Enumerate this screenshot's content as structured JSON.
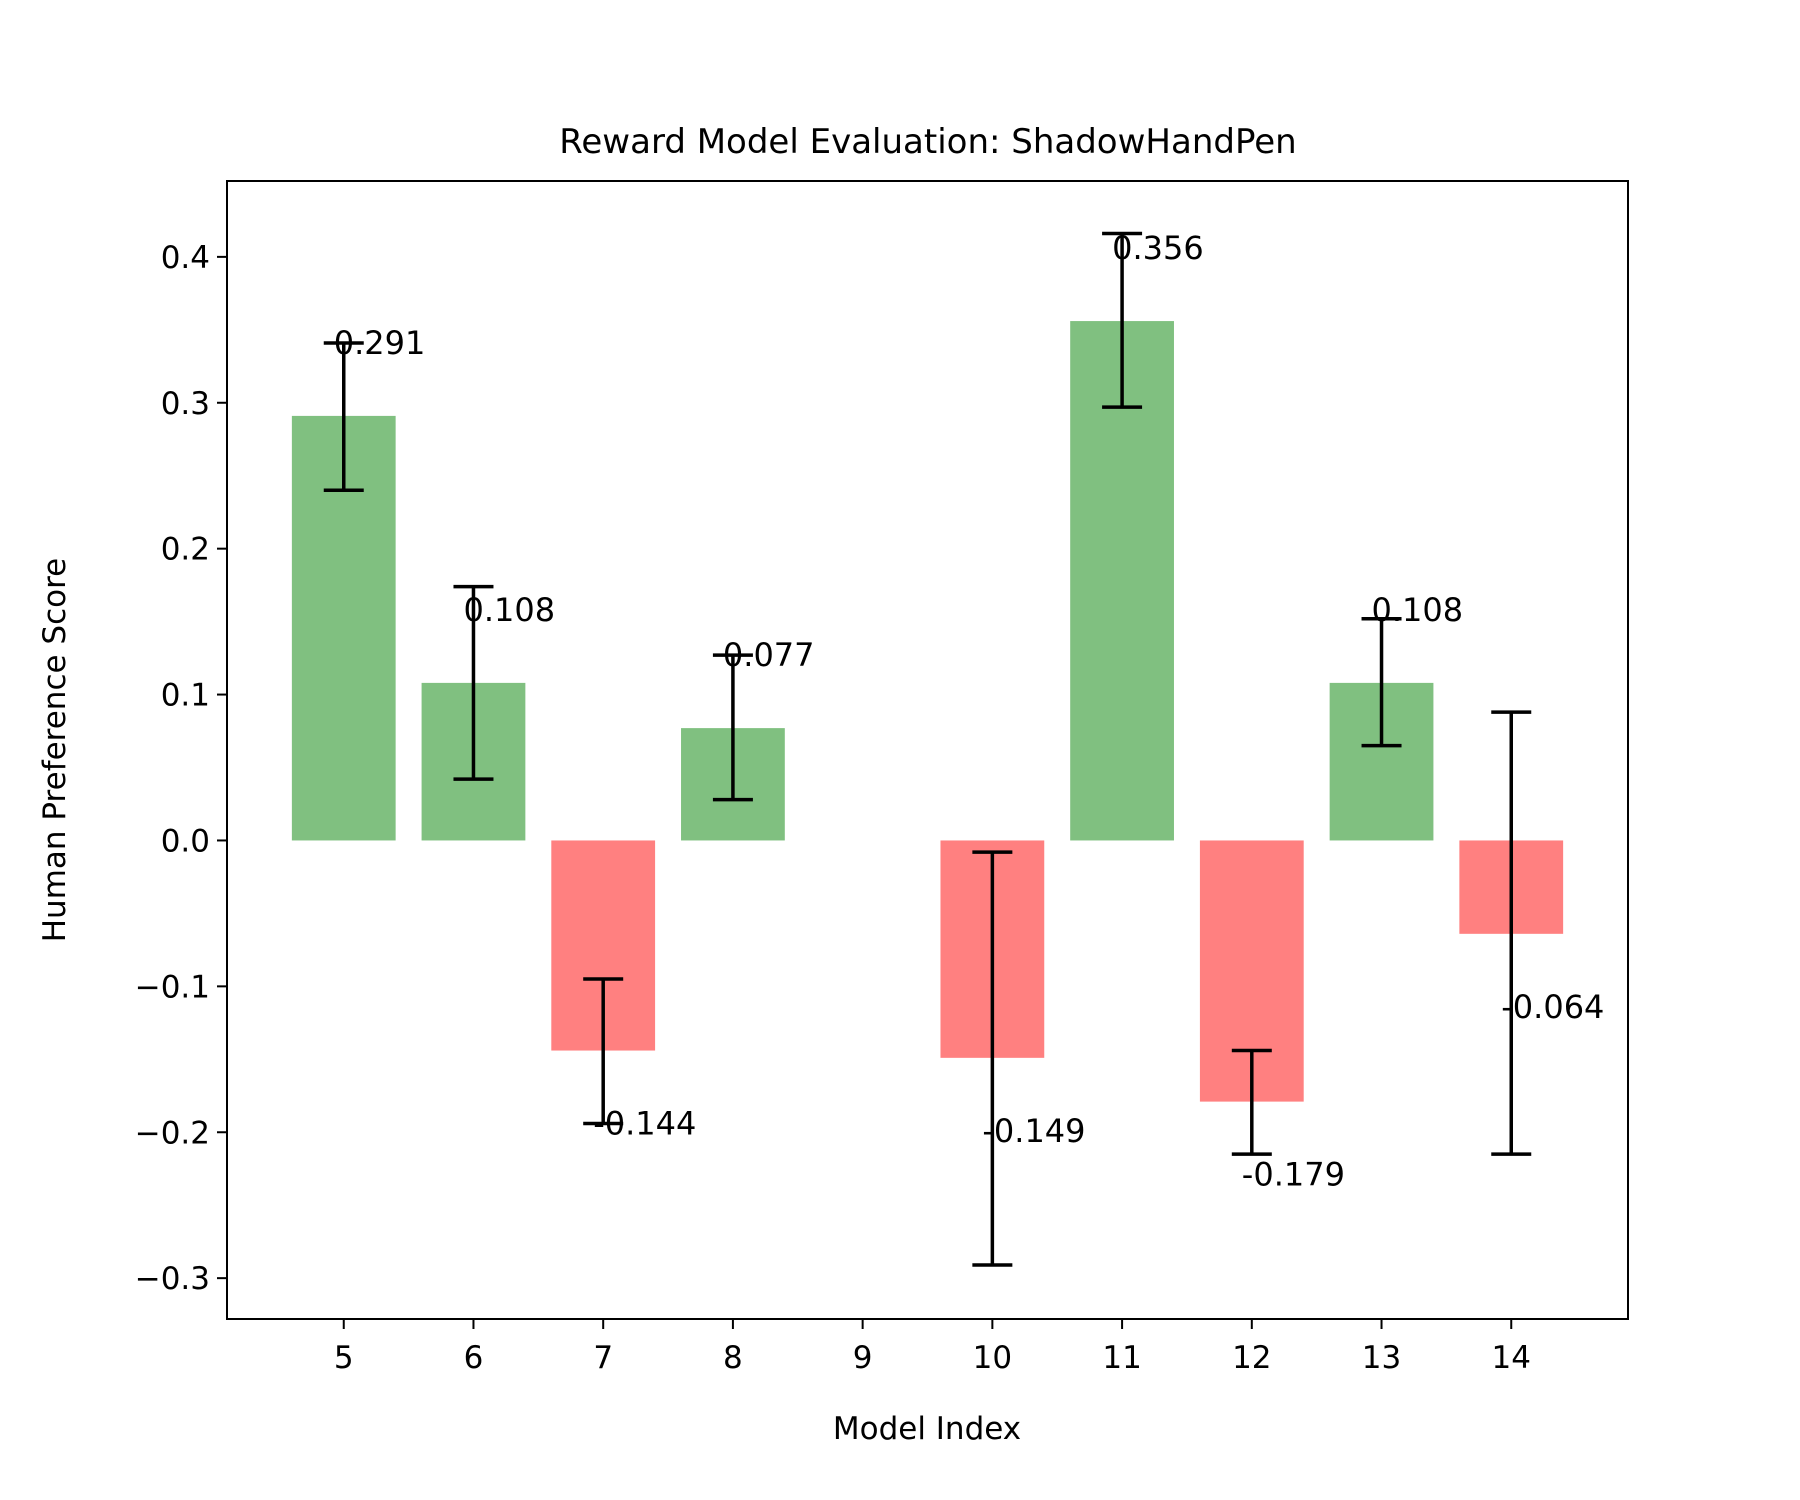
{
  "chart_data": {
    "type": "bar",
    "title": "Reward Model Evaluation: ShadowHandPen",
    "xlabel": "Model Index",
    "ylabel": "Human Preference Score",
    "x": [
      5,
      6,
      7,
      8,
      9,
      10,
      11,
      12,
      13,
      14
    ],
    "values": [
      0.291,
      0.108,
      -0.144,
      0.077,
      null,
      -0.149,
      0.356,
      -0.179,
      0.108,
      -0.064
    ],
    "labels": [
      "0.291",
      "0.108",
      "-0.144",
      "0.077",
      null,
      "-0.149",
      "0.356",
      "-0.179",
      "0.108",
      "-0.064"
    ],
    "error_low": [
      0.24,
      0.042,
      -0.194,
      0.028,
      null,
      -0.291,
      0.297,
      -0.215,
      0.065,
      -0.215
    ],
    "error_high": [
      0.341,
      0.174,
      -0.095,
      0.127,
      null,
      -0.008,
      0.416,
      -0.144,
      0.152,
      0.088
    ],
    "yticks": [
      -0.3,
      -0.2,
      -0.1,
      0.0,
      0.1,
      0.2,
      0.3,
      0.4
    ],
    "ytick_labels": [
      "−0.3",
      "−0.2",
      "−0.1",
      "0.0",
      "0.1",
      "0.2",
      "0.3",
      "0.4"
    ],
    "xticks": [
      "5",
      "6",
      "7",
      "8",
      "9",
      "10",
      "11",
      "12",
      "13",
      "14"
    ],
    "ylim": [
      -0.328,
      0.452
    ],
    "xlim": [
      4.1,
      14.9
    ],
    "grid": false,
    "colors": {
      "positive": "#80c080",
      "negative": "#ff8080",
      "errorbar": "#000000"
    }
  }
}
